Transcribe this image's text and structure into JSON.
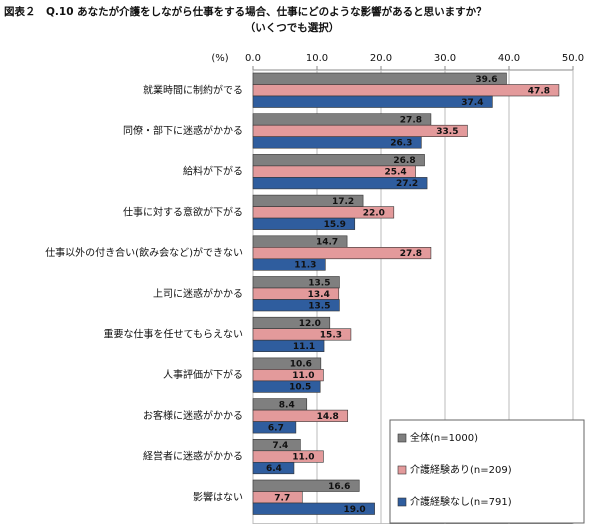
{
  "chart_data": {
    "type": "barh",
    "title": "図表２　Q.10 あなたが介護をしながら仕事をする場合、仕事にどのような影響があると思いますか？",
    "subtitle": "（いくつでも選択）",
    "xlabel": "(%)",
    "categories": [
      "就業時間に制約がでる",
      "同僚・部下に迷惑がかかる",
      "給料が下がる",
      "仕事に対する意欲が下がる",
      "仕事以外の付き合い(飲み会など)ができない",
      "上司に迷惑がかかる",
      "重要な仕事を任せてもらえない",
      "人事評価が下がる",
      "お客様に迷惑がかかる",
      "経営者に迷惑がかかる",
      "影響はない"
    ],
    "series": [
      {
        "name": "全体(n=1000)",
        "color": "#7f7f7f",
        "label_color": "#ffffff",
        "values": [
          39.6,
          27.8,
          26.8,
          17.2,
          14.7,
          13.5,
          12.0,
          10.6,
          8.4,
          7.4,
          16.6
        ],
        "value_labels": [
          "39.6",
          "27.8",
          "26.8",
          "17.2",
          "14.7",
          "13.5",
          "12.0",
          "10.6",
          "8.4",
          "7.4",
          "16.6"
        ]
      },
      {
        "name": "介護経験あり(n=209)",
        "color": "#e39a9b",
        "label_color": "#222222",
        "values": [
          47.8,
          33.5,
          25.4,
          22.0,
          27.8,
          13.4,
          15.3,
          11.0,
          14.8,
          11.0,
          7.7
        ],
        "value_labels": [
          "47.8",
          "33.5",
          "25.4",
          "22.0",
          "27.8",
          "13.4",
          "15.3",
          "11.0",
          "14.8",
          "11.0",
          "7.7"
        ]
      },
      {
        "name": "介護経験なし(n=791)",
        "color": "#2f5d9e",
        "label_color": "#ffffff",
        "values": [
          37.4,
          26.3,
          27.2,
          15.9,
          11.3,
          13.5,
          11.1,
          10.5,
          6.7,
          6.4,
          19.0
        ],
        "value_labels": [
          "37.4",
          "26.3",
          "27.2",
          "15.9",
          "11.3",
          "13.5",
          "11.1",
          "10.5",
          "6.7",
          "6.4",
          "19.0"
        ]
      }
    ],
    "xlim": [
      0,
      50
    ],
    "xticks": [
      {
        "value": 0,
        "label": "0.0"
      },
      {
        "value": 10,
        "label": "10.0"
      },
      {
        "value": 20,
        "label": "20.0"
      },
      {
        "value": 30,
        "label": "30.0"
      },
      {
        "value": 40,
        "label": "40.0"
      },
      {
        "value": 50,
        "label": "50.0"
      }
    ],
    "grid": true,
    "legend": "lower right"
  }
}
